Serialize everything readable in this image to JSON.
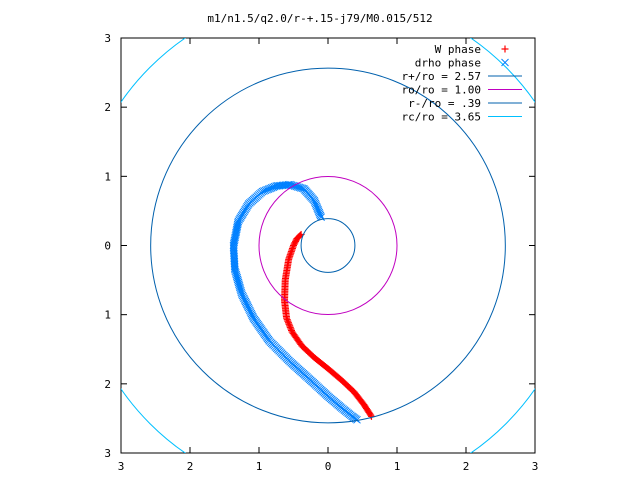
{
  "chart_data": {
    "type": "scatter",
    "title": "m1/n1.5/q2.0/r-+.15-j79/M0.015/512",
    "xlabel": "",
    "ylabel": "",
    "xlim": [
      -3,
      3
    ],
    "ylim": [
      -3,
      3
    ],
    "x_tick_values": [
      -3,
      -2,
      -1,
      0,
      1,
      2,
      3
    ],
    "x_tick_labels": [
      "3",
      "2",
      "1",
      "0",
      "1",
      "2",
      "3"
    ],
    "y_tick_values": [
      3,
      2,
      1,
      0,
      -1,
      -2,
      -3
    ],
    "y_tick_labels": [
      "3",
      "2",
      "1",
      "0",
      "1",
      "2",
      "3"
    ],
    "grid": false,
    "legend_position": "top-right",
    "series": [
      {
        "name": "W phase",
        "kind": "points",
        "marker": "plus",
        "color": "#ff0000",
        "points": [
          [
            -0.39,
            0.16
          ],
          [
            -0.45,
            0.1
          ],
          [
            -0.5,
            0.0
          ],
          [
            -0.57,
            -0.2
          ],
          [
            -0.62,
            -0.5
          ],
          [
            -0.63,
            -0.8
          ],
          [
            -0.6,
            -1.05
          ],
          [
            -0.52,
            -1.25
          ],
          [
            -0.38,
            -1.45
          ],
          [
            -0.2,
            -1.62
          ],
          [
            0.0,
            -1.78
          ],
          [
            0.2,
            -1.95
          ],
          [
            0.38,
            -2.12
          ],
          [
            0.52,
            -2.3
          ],
          [
            0.63,
            -2.47
          ]
        ]
      },
      {
        "name": "drho phase",
        "kind": "points",
        "marker": "cross",
        "color": "#0080ff",
        "points": [
          [
            -0.1,
            0.41
          ],
          [
            -0.2,
            0.65
          ],
          [
            -0.35,
            0.82
          ],
          [
            -0.55,
            0.88
          ],
          [
            -0.75,
            0.86
          ],
          [
            -0.95,
            0.78
          ],
          [
            -1.15,
            0.6
          ],
          [
            -1.3,
            0.35
          ],
          [
            -1.37,
            0.0
          ],
          [
            -1.35,
            -0.35
          ],
          [
            -1.25,
            -0.7
          ],
          [
            -1.08,
            -1.05
          ],
          [
            -0.85,
            -1.38
          ],
          [
            -0.55,
            -1.68
          ],
          [
            -0.25,
            -1.95
          ],
          [
            0.0,
            -2.18
          ],
          [
            0.2,
            -2.35
          ],
          [
            0.35,
            -2.47
          ],
          [
            0.42,
            -2.52
          ]
        ]
      },
      {
        "name": "r+/ro = 2.57",
        "kind": "circle",
        "radius": 2.57,
        "color": "#0060ad"
      },
      {
        "name": "ro/ro = 1.00",
        "kind": "circle",
        "radius": 1.0,
        "color": "#c000c0"
      },
      {
        "name": "r-/ro = .39",
        "kind": "circle",
        "radius": 0.39,
        "color": "#0060ad"
      },
      {
        "name": "rc/ro = 3.65",
        "kind": "circle",
        "radius": 3.65,
        "color": "#00c0ff"
      }
    ]
  }
}
